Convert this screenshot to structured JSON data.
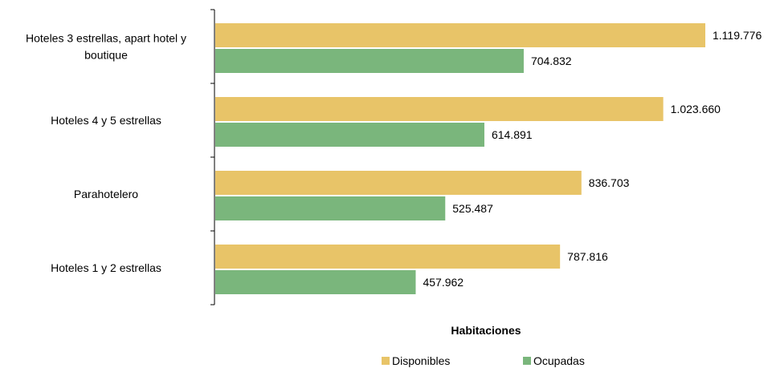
{
  "chart_data": {
    "type": "bar",
    "orientation": "horizontal",
    "categories": [
      "Hoteles 3 estrellas, apart hotel y boutique",
      "Hoteles 4 y 5 estrellas",
      "Parahotelero",
      "Hoteles 1 y 2 estrellas"
    ],
    "category_label_lines": [
      [
        "Hoteles 3 estrellas, apart hotel y",
        "boutique"
      ],
      [
        "Hoteles 4 y 5 estrellas"
      ],
      [
        "Parahotelero"
      ],
      [
        "Hoteles 1 y 2 estrellas"
      ]
    ],
    "series": [
      {
        "name": "Disponibles",
        "color": "#E8C468",
        "values": [
          1119776,
          1023660,
          836703,
          787816
        ],
        "labels": [
          "1.119.776",
          "1.023.660",
          "836.703",
          "787.816"
        ]
      },
      {
        "name": "Ocupadas",
        "color": "#7AB67C",
        "values": [
          704832,
          614891,
          525487,
          457962
        ],
        "labels": [
          "704.832",
          "614.891",
          "525.487",
          "457.962"
        ]
      }
    ],
    "xlabel": "Habitaciones",
    "ylabel": "",
    "xlim": [
      0,
      1119776
    ],
    "grid": false,
    "legend_position": "bottom"
  }
}
